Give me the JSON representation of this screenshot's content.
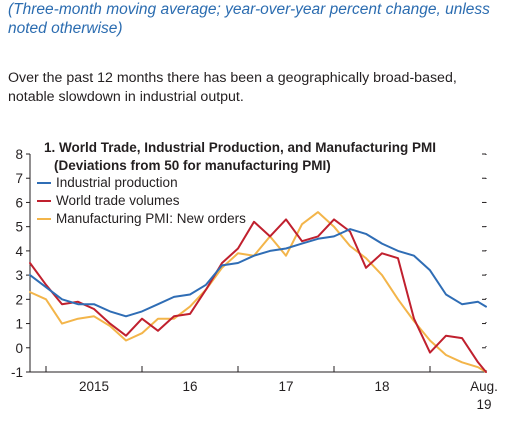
{
  "page": {
    "subtitle": "(Three-month moving average; year-over-year percent change, unless noted otherwise)",
    "intro": "Over the past 12 months there has been a geographically broad-based, notable slowdown in industrial output."
  },
  "colors": {
    "industrial_production": "#2f6db5",
    "world_trade_volumes": "#c0202e",
    "manufacturing_pmi": "#f3b54a",
    "axis": "#231f20"
  },
  "chart_data": {
    "type": "line",
    "title_line1": "1. World Trade, Industrial Production, and Manufacturing PMI",
    "title_line2": "(Deviations from 50 for manufacturing PMI)",
    "ylim": [
      -1,
      8
    ],
    "y_ticks": [
      -1,
      0,
      1,
      2,
      3,
      4,
      5,
      6,
      7,
      8
    ],
    "y_tick_labels": [
      "-1",
      "0",
      "1",
      "2",
      "3",
      "4",
      "5",
      "6",
      "7",
      "8"
    ],
    "x_tick_labels": [
      "2015",
      "16",
      "17",
      "18",
      "Aug."
    ],
    "x_tick_label_last_line2": "19",
    "x_start": "2014-11",
    "x_end": "2019-08",
    "legend_placement": "top-left",
    "grid": false,
    "series": [
      {
        "name": "Industrial production",
        "color_key": "industrial_production",
        "x": [
          "2014-11",
          "2015-01",
          "2015-03",
          "2015-05",
          "2015-07",
          "2015-09",
          "2015-11",
          "2016-01",
          "2016-03",
          "2016-05",
          "2016-07",
          "2016-09",
          "2016-11",
          "2017-01",
          "2017-03",
          "2017-05",
          "2017-07",
          "2017-09",
          "2017-11",
          "2018-01",
          "2018-03",
          "2018-05",
          "2018-07",
          "2018-09",
          "2018-11",
          "2019-01",
          "2019-03",
          "2019-05",
          "2019-07",
          "2019-08"
        ],
        "values": [
          3.0,
          2.5,
          2.0,
          1.8,
          1.8,
          1.5,
          1.3,
          1.5,
          1.8,
          2.1,
          2.2,
          2.6,
          3.4,
          3.5,
          3.8,
          4.0,
          4.1,
          4.3,
          4.5,
          4.6,
          4.9,
          4.7,
          4.3,
          4.0,
          3.8,
          3.2,
          2.2,
          1.8,
          1.9,
          1.7
        ]
      },
      {
        "name": "World trade volumes",
        "color_key": "world_trade_volumes",
        "x": [
          "2014-11",
          "2015-01",
          "2015-03",
          "2015-05",
          "2015-07",
          "2015-09",
          "2015-11",
          "2016-01",
          "2016-03",
          "2016-05",
          "2016-07",
          "2016-09",
          "2016-11",
          "2017-01",
          "2017-03",
          "2017-05",
          "2017-07",
          "2017-09",
          "2017-11",
          "2018-01",
          "2018-03",
          "2018-05",
          "2018-07",
          "2018-09",
          "2018-11",
          "2019-01",
          "2019-03",
          "2019-05",
          "2019-07",
          "2019-08"
        ],
        "values": [
          3.5,
          2.6,
          1.8,
          1.9,
          1.6,
          1.0,
          0.5,
          1.2,
          0.7,
          1.3,
          1.4,
          2.4,
          3.5,
          4.1,
          5.2,
          4.6,
          5.3,
          4.4,
          4.6,
          5.3,
          4.8,
          3.3,
          3.9,
          3.7,
          1.2,
          -0.2,
          0.5,
          0.4,
          -0.6,
          -1.0
        ]
      },
      {
        "name": "Manufacturing PMI: New orders",
        "color_key": "manufacturing_pmi",
        "x": [
          "2014-11",
          "2015-01",
          "2015-03",
          "2015-05",
          "2015-07",
          "2015-09",
          "2015-11",
          "2016-01",
          "2016-03",
          "2016-05",
          "2016-07",
          "2016-09",
          "2016-11",
          "2017-01",
          "2017-03",
          "2017-05",
          "2017-07",
          "2017-09",
          "2017-11",
          "2018-01",
          "2018-03",
          "2018-05",
          "2018-07",
          "2018-09",
          "2018-11",
          "2019-01",
          "2019-03",
          "2019-05",
          "2019-07",
          "2019-08"
        ],
        "values": [
          2.3,
          2.0,
          1.0,
          1.2,
          1.3,
          0.9,
          0.3,
          0.6,
          1.2,
          1.2,
          1.7,
          2.4,
          3.3,
          3.9,
          3.8,
          4.6,
          3.8,
          5.1,
          5.6,
          5.0,
          4.2,
          3.7,
          3.0,
          2.0,
          1.1,
          0.3,
          -0.3,
          -0.6,
          -0.8,
          -1.0
        ]
      }
    ]
  }
}
